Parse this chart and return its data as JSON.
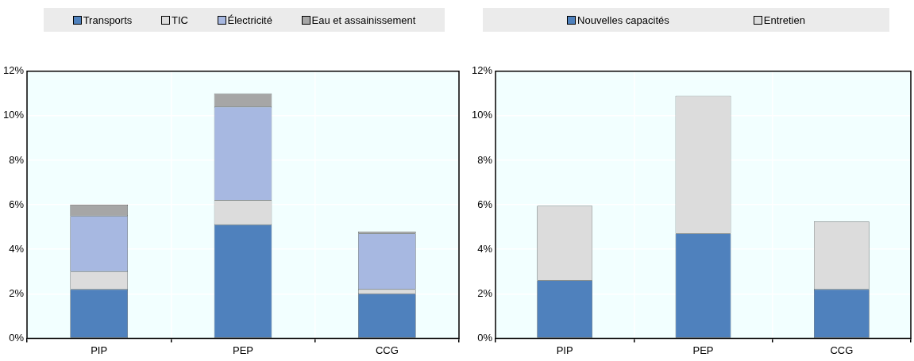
{
  "chart_data": [
    {
      "type": "bar",
      "stacked": true,
      "categories": [
        "PIP",
        "PEP",
        "CCG"
      ],
      "ylim": [
        0,
        12
      ],
      "yticks": [
        {
          "value": 0,
          "label": "0%"
        },
        {
          "value": 2,
          "label": "2%"
        },
        {
          "value": 4,
          "label": "4%"
        },
        {
          "value": 6,
          "label": "6%"
        },
        {
          "value": 8,
          "label": "8%"
        },
        {
          "value": 10,
          "label": "10%"
        },
        {
          "value": 12,
          "label": "12%"
        }
      ],
      "grid": true,
      "legend": "top",
      "series": [
        {
          "name": "Transports",
          "color": "#4f81bd",
          "values": [
            2.2,
            5.1,
            2.0
          ]
        },
        {
          "name": "TIC",
          "color": "#dcdcdc",
          "values": [
            0.8,
            1.1,
            0.2
          ]
        },
        {
          "name": "Électricité",
          "color": "#a7b8e1",
          "values": [
            2.5,
            4.2,
            2.5
          ]
        },
        {
          "name": "Eau et assainissement",
          "color": "#a6a6a6",
          "values": [
            0.5,
            0.6,
            0.1
          ]
        }
      ]
    },
    {
      "type": "bar",
      "stacked": true,
      "categories": [
        "PIP",
        "PEP",
        "CCG"
      ],
      "ylim": [
        0,
        12
      ],
      "yticks": [
        {
          "value": 0,
          "label": "0%"
        },
        {
          "value": 2,
          "label": "2%"
        },
        {
          "value": 4,
          "label": "4%"
        },
        {
          "value": 6,
          "label": "6%"
        },
        {
          "value": 8,
          "label": "8%"
        },
        {
          "value": 10,
          "label": "10%"
        },
        {
          "value": 12,
          "label": "12%"
        }
      ],
      "grid": true,
      "legend": "top",
      "series": [
        {
          "name": "Nouvelles capacités",
          "color": "#4f81bd",
          "values": [
            2.6,
            4.7,
            2.2
          ]
        },
        {
          "name": "Entretien",
          "color": "#dcdcdc",
          "values": [
            3.35,
            6.2,
            3.05
          ]
        }
      ]
    }
  ]
}
